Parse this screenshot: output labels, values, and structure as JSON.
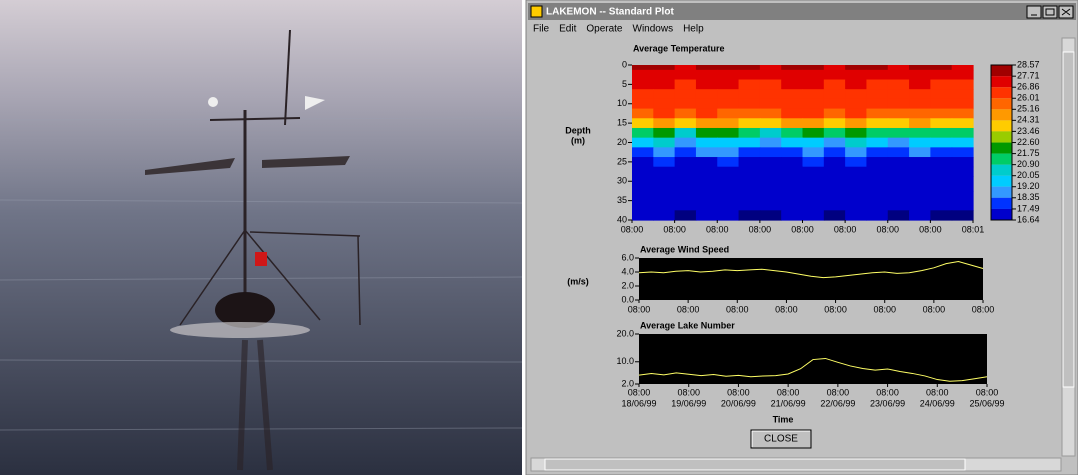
{
  "window": {
    "title": "LAKEMON -- Standard Plot",
    "menu": [
      "File",
      "Edit",
      "Operate",
      "Windows",
      "Help"
    ],
    "button": "CLOSE"
  },
  "chart_data": [
    {
      "type": "heatmap",
      "title": "Average Temperature",
      "ylabel": [
        "Depth",
        "(m)"
      ],
      "y_reversed": true,
      "x": [
        0,
        0.5,
        1,
        1.5,
        2,
        2.5,
        3,
        3.5,
        4,
        4.5,
        5,
        5.5,
        6,
        6.5,
        7,
        7.5
      ],
      "depths": [
        0,
        2.5,
        5,
        7.5,
        10,
        12.5,
        15,
        17.5,
        20,
        22.5,
        25,
        27.5,
        30,
        35,
        40
      ],
      "z": [
        [
          27.9,
          28.1,
          27.6,
          27.9,
          28.2,
          27.8,
          27.5,
          27.9,
          28.0,
          27.7,
          28.1,
          27.8,
          27.6,
          27.9,
          28.0,
          27.7
        ],
        [
          27.3,
          27.6,
          27.1,
          27.4,
          27.5,
          27.2,
          27.0,
          27.3,
          27.4,
          27.1,
          27.6,
          27.2,
          27.1,
          27.3,
          27.4,
          27.2
        ],
        [
          26.9,
          27.0,
          26.7,
          27.1,
          26.9,
          26.8,
          26.6,
          26.9,
          27.0,
          26.7,
          27.1,
          26.8,
          26.7,
          26.9,
          26.8,
          26.7
        ],
        [
          26.6,
          26.7,
          26.4,
          26.8,
          26.5,
          26.5,
          26.3,
          26.6,
          26.7,
          26.4,
          26.8,
          26.5,
          26.4,
          26.6,
          26.5,
          26.4
        ],
        [
          26.4,
          26.3,
          26.2,
          26.5,
          26.3,
          26.2,
          26.1,
          26.4,
          26.5,
          26.2,
          26.5,
          26.3,
          26.2,
          26.4,
          26.3,
          26.2
        ],
        [
          25.9,
          26.1,
          25.7,
          26.2,
          26.0,
          25.8,
          25.6,
          26.1,
          26.2,
          25.9,
          26.3,
          25.9,
          25.8,
          26.0,
          25.9,
          25.8
        ],
        [
          24.2,
          24.8,
          23.9,
          24.5,
          24.6,
          24.1,
          23.8,
          24.4,
          24.7,
          24.0,
          24.9,
          24.3,
          24.0,
          24.4,
          24.2,
          24.1
        ],
        [
          21.4,
          22.3,
          20.8,
          21.9,
          22.0,
          21.2,
          20.6,
          21.6,
          22.1,
          21.0,
          22.5,
          21.5,
          20.9,
          21.7,
          21.3,
          21.1
        ],
        [
          19.4,
          20.1,
          18.9,
          19.6,
          19.8,
          19.2,
          18.7,
          19.5,
          19.9,
          19.0,
          20.3,
          19.4,
          18.8,
          19.6,
          19.3,
          19.2
        ],
        [
          18.2,
          18.7,
          17.8,
          18.4,
          18.6,
          18.0,
          17.6,
          18.3,
          18.6,
          17.9,
          18.9,
          18.2,
          17.7,
          18.4,
          18.1,
          18.0
        ],
        [
          17.3,
          17.6,
          17.1,
          17.4,
          17.5,
          17.2,
          16.9,
          17.3,
          17.5,
          17.1,
          17.7,
          17.3,
          17.0,
          17.4,
          17.2,
          17.1
        ],
        [
          17.0,
          17.1,
          16.9,
          17.0,
          17.1,
          16.9,
          16.8,
          17.0,
          17.1,
          16.9,
          17.2,
          17.0,
          16.8,
          17.0,
          16.9,
          16.9
        ],
        [
          16.9,
          16.9,
          16.8,
          16.9,
          17.0,
          16.8,
          16.7,
          16.9,
          17.0,
          16.8,
          17.0,
          16.9,
          16.7,
          16.9,
          16.8,
          16.8
        ],
        [
          16.8,
          16.8,
          16.7,
          16.8,
          16.8,
          16.7,
          16.7,
          16.8,
          16.8,
          16.7,
          16.9,
          16.8,
          16.7,
          16.8,
          16.7,
          16.7
        ],
        [
          16.7,
          16.7,
          16.6,
          16.7,
          16.7,
          16.6,
          16.6,
          16.7,
          16.7,
          16.6,
          16.7,
          16.7,
          16.6,
          16.7,
          16.6,
          16.6
        ]
      ],
      "xlim": [
        0,
        8
      ],
      "ylim": [
        0,
        40
      ],
      "xticks": [
        {
          "value": 0,
          "label": "08:00"
        },
        {
          "value": 1,
          "label": "08:00"
        },
        {
          "value": 2,
          "label": "08:00"
        },
        {
          "value": 3,
          "label": "08:00"
        },
        {
          "value": 4,
          "label": "08:00"
        },
        {
          "value": 5,
          "label": "08:00"
        },
        {
          "value": 6,
          "label": "08:00"
        },
        {
          "value": 7,
          "label": "08:00"
        },
        {
          "value": 8,
          "label": "08:01"
        }
      ],
      "yticks": [
        0,
        5,
        10,
        15,
        20,
        25,
        30,
        35,
        40
      ],
      "levels": [
        28.57,
        27.71,
        26.86,
        {
          "value": 26.01,
          "label": "26.01"
        },
        25.16,
        24.31,
        23.46,
        {
          "value": 22.6,
          "label": "22.60"
        },
        21.75,
        {
          "value": 20.9,
          "label": "20.90"
        },
        20.05,
        {
          "value": 19.2,
          "label": "19.20"
        },
        18.35,
        17.49,
        16.64
      ],
      "colors": [
        "#a00000",
        "#e00000",
        "#ff3300",
        "#ff6600",
        "#ff9900",
        "#ffcc00",
        "#99cc00",
        "#009900",
        "#00cc66",
        "#00cccc",
        "#00ccff",
        "#3399ff",
        "#0033ff",
        "#0000cc",
        "#000080"
      ]
    },
    {
      "type": "line",
      "title": "Average Wind Speed",
      "ylabel": [
        "(m/s)"
      ],
      "color": "#ffff66",
      "x": [
        0,
        0.25,
        0.5,
        0.75,
        1,
        1.25,
        1.5,
        1.75,
        2,
        2.25,
        2.5,
        2.75,
        3,
        3.25,
        3.5,
        3.75,
        4,
        4.25,
        4.5,
        4.75,
        5,
        5.25,
        5.5,
        5.75,
        6,
        6.25,
        6.5,
        6.75,
        7
      ],
      "values": [
        3.9,
        4.0,
        3.9,
        4.1,
        4.2,
        4.0,
        4.1,
        4.3,
        4.2,
        4.3,
        4.4,
        4.2,
        4.0,
        3.7,
        3.4,
        3.2,
        3.3,
        3.5,
        3.7,
        3.9,
        4.0,
        3.8,
        3.9,
        4.2,
        4.6,
        5.2,
        5.5,
        5.0,
        4.5
      ],
      "xlim": [
        0,
        7
      ],
      "ylim": [
        0,
        6
      ],
      "xticks": [
        {
          "value": 0,
          "label": "08:00"
        },
        {
          "value": 1,
          "label": "08:00"
        },
        {
          "value": 2,
          "label": "08:00"
        },
        {
          "value": 3,
          "label": "08:00"
        },
        {
          "value": 4,
          "label": "08:00"
        },
        {
          "value": 5,
          "label": "08:00"
        },
        {
          "value": 6,
          "label": "08:00"
        },
        {
          "value": 7,
          "label": "08:00"
        }
      ],
      "yticks": [
        {
          "value": 0,
          "label": "0.0"
        },
        {
          "value": 2,
          "label": "2.0"
        },
        {
          "value": 4,
          "label": "4.0"
        },
        {
          "value": 6,
          "label": "6.0"
        }
      ]
    },
    {
      "type": "line",
      "title": "Average Lake Number",
      "xlabel": "Time",
      "color": "#ffff66",
      "x": [
        0,
        0.25,
        0.5,
        0.75,
        1,
        1.25,
        1.5,
        1.75,
        2,
        2.25,
        2.5,
        2.75,
        3,
        3.25,
        3.5,
        3.75,
        4,
        4.25,
        4.5,
        4.75,
        5,
        5.25,
        5.5,
        5.75,
        6,
        6.25,
        6.5,
        6.75,
        7
      ],
      "values": [
        5.2,
        5.8,
        5.3,
        6.0,
        5.5,
        5.0,
        5.4,
        4.8,
        5.1,
        4.6,
        4.9,
        5.0,
        5.6,
        7.5,
        10.8,
        11.2,
        9.8,
        8.5,
        7.6,
        7.0,
        7.4,
        6.5,
        5.8,
        4.9,
        3.6,
        3.0,
        3.2,
        3.9,
        4.6
      ],
      "xlim": [
        0,
        7
      ],
      "ylim": [
        2,
        20
      ],
      "xticks": [
        {
          "value": 0,
          "label": [
            "08:00",
            "18/06/99"
          ]
        },
        {
          "value": 1,
          "label": [
            "08:00",
            "19/06/99"
          ]
        },
        {
          "value": 2,
          "label": [
            "08:00",
            "20/06/99"
          ]
        },
        {
          "value": 3,
          "label": [
            "08:00",
            "21/06/99"
          ]
        },
        {
          "value": 4,
          "label": [
            "08:00",
            "22/06/99"
          ]
        },
        {
          "value": 5,
          "label": [
            "08:00",
            "23/06/99"
          ]
        },
        {
          "value": 6,
          "label": [
            "08:00",
            "24/06/99"
          ]
        },
        {
          "value": 7,
          "label": [
            "08:00",
            "25/06/99"
          ]
        }
      ],
      "yticks": [
        {
          "value": 2,
          "label": "2.0"
        },
        {
          "value": 10,
          "label": "10.0"
        },
        {
          "value": 20,
          "label": "20.0"
        }
      ]
    }
  ]
}
